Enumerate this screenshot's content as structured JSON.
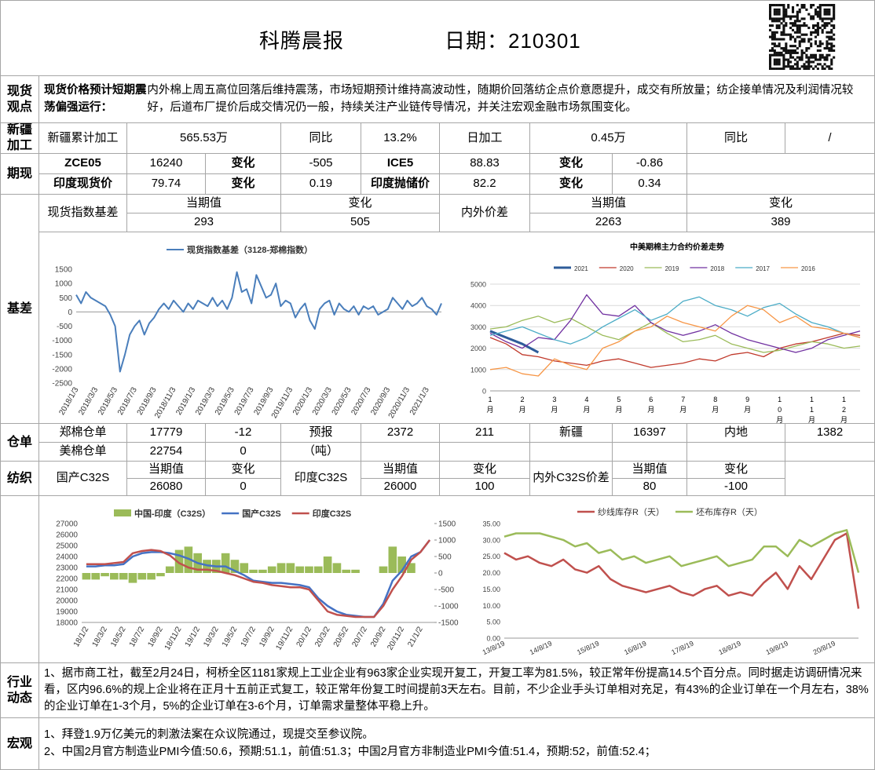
{
  "header": {
    "title": "科腾晨报",
    "date": "日期：210301"
  },
  "spot_view": {
    "label": "现货观点",
    "lead": "现货价格预计短期震荡偏强运行：",
    "text": "内外棉上周五高位回落后维持震荡，市场短期预计维持高波动性，随期价回落纺企点价意愿提升，成交有所放量；纺企接单情况及利润情况较好，后道布厂提价后成交情况仍一般，持续关注产业链传导情况，并关注宏观金融市场氛围变化。"
  },
  "xinjiang": {
    "label": "新疆加工",
    "cells": [
      "新疆累计加工",
      "565.53万",
      "同比",
      "13.2%",
      "日加工",
      "0.45万",
      "同比",
      "/"
    ]
  },
  "futures": {
    "label": "期现",
    "rows": [
      [
        "ZCE05",
        "16240",
        "变化",
        "-505",
        "ICE5",
        "88.83",
        "变化",
        "-0.86"
      ],
      [
        "印度现货价",
        "79.74",
        "变化",
        "0.19",
        "印度抛储价",
        "82.2",
        "变化",
        "0.34"
      ]
    ]
  },
  "basis": {
    "label": "基差",
    "head": [
      "现货指数基差",
      "当期值",
      "变化",
      "内外价差",
      "当期值",
      "变化"
    ],
    "values": [
      "293",
      "505",
      "2263",
      "389"
    ]
  },
  "warehouse": {
    "label": "仓单",
    "rows": [
      [
        "郑棉仓单",
        "17779",
        "-12",
        "预报",
        "2372",
        "211",
        "新疆",
        "16397",
        "内地",
        "1382"
      ],
      [
        "美棉仓单",
        "22754",
        "0",
        "（吨）"
      ]
    ]
  },
  "textile": {
    "label": "纺织",
    "head": [
      "国产C32S",
      "当期值",
      "变化",
      "印度C32S",
      "当期值",
      "变化",
      "内外C32S价差",
      "当期值",
      "变化"
    ],
    "values": [
      "26080",
      "0",
      "26000",
      "100",
      "80",
      "-100"
    ]
  },
  "industry": {
    "label": "行业动态",
    "text": "1、据市商工社，截至2月24日，柯桥全区1181家规上工业企业有963家企业实现开复工，开复工率为81.5%，较正常年份提高14.5个百分点。同时据走访调研情况来看，区内96.6%的规上企业将在正月十五前正式复工，较正常年份复工时间提前3天左右。目前，不少企业手头订单相对充足，有43%的企业订单在一个月左右，38%的企业订单在1-3个月，5%的企业订单在3-6个月，订单需求量整体平稳上升。"
  },
  "macro": {
    "label": "宏观",
    "items": [
      "1、拜登1.9万亿美元的刺激法案在众议院通过，现提交至参议院。",
      "2、中国2月官方制造业PMI今值:50.6，预期:51.1，前值:51.3；中国2月官方非制造业PMI今值:51.4，预期:52，前值:52.4；"
    ]
  },
  "chart_data": [
    {
      "type": "line",
      "categories": [
        "2018/1/3",
        null,
        null,
        null,
        "2018/3/3",
        null,
        null,
        null,
        "2018/5/3",
        null,
        null,
        null,
        "2018/7/3",
        null,
        null,
        null,
        "2018/9/3",
        null,
        null,
        null,
        "2018/11/3",
        null,
        null,
        null,
        "2019/1/3",
        null,
        null,
        null,
        "2019/3/3",
        null,
        null,
        null,
        "2019/5/3",
        null,
        null,
        null,
        "2019/7/3",
        null,
        null,
        null,
        "2019/9/3",
        null,
        null,
        null,
        "2019/11/3",
        null,
        null,
        null,
        "2020/1/3",
        null,
        null,
        null,
        "2020/3/3",
        null,
        null,
        null,
        "2020/5/3",
        null,
        null,
        null,
        "2020/7/3",
        null,
        null,
        null,
        "2020/9/3",
        null,
        null,
        null,
        "2020/11/3",
        null,
        null,
        null,
        "2021/1/3",
        null,
        null,
        null
      ],
      "series": [
        {
          "name": "现货指数基差（3128-郑棉指数）",
          "color": "#4a7ebb",
          "values": [
            600,
            300,
            700,
            500,
            400,
            300,
            200,
            -100,
            -500,
            -2100,
            -1500,
            -800,
            -500,
            -300,
            -800,
            -400,
            -200,
            100,
            300,
            100,
            400,
            200,
            0,
            300,
            100,
            400,
            300,
            200,
            500,
            200,
            400,
            100,
            500,
            1400,
            700,
            800,
            300,
            1300,
            900,
            500,
            600,
            1000,
            200,
            400,
            300,
            -200,
            100,
            300,
            -300,
            -600,
            100,
            300,
            400,
            -100,
            300,
            100,
            0,
            200,
            -100,
            200,
            100,
            200,
            -100,
            0,
            100,
            500,
            300,
            100,
            400,
            200,
            300,
            500,
            200,
            100,
            -100,
            300
          ]
        }
      ],
      "ylim": [
        -2500,
        1500
      ],
      "yticks": [
        -2500,
        -2000,
        -1500,
        -1000,
        -500,
        0,
        500,
        1000,
        1500
      ],
      "grid": false
    },
    {
      "type": "line",
      "title": "中美期棉主力合约价差走势",
      "categories": [
        "1月",
        null,
        "2月",
        null,
        "3月",
        null,
        "4月",
        null,
        "5月",
        null,
        "6月",
        null,
        "7月",
        null,
        "8月",
        null,
        "9月",
        null,
        "10月",
        null,
        "11月",
        null,
        "12月",
        null
      ],
      "series": [
        {
          "name": "2021",
          "color": "#2e5c9a",
          "values": [
            2800,
            2500,
            2200,
            1800,
            null,
            null,
            null,
            null,
            null,
            null,
            null,
            null,
            null,
            null,
            null,
            null,
            null,
            null,
            null,
            null,
            null,
            null,
            null,
            null
          ]
        },
        {
          "name": "2020",
          "color": "#c0392b",
          "values": [
            2500,
            2200,
            1700,
            1600,
            1400,
            1300,
            1200,
            1400,
            1500,
            1300,
            1100,
            1200,
            1300,
            1500,
            1400,
            1700,
            1800,
            1600,
            2000,
            2200,
            2300,
            2500,
            2700,
            2600
          ]
        },
        {
          "name": "2019",
          "color": "#9bbb59",
          "values": [
            2900,
            3000,
            3300,
            3500,
            3200,
            3400,
            3000,
            2600,
            2400,
            2800,
            3200,
            2700,
            2300,
            2400,
            2600,
            2200,
            2000,
            1800,
            1900,
            2100,
            2300,
            2200,
            2000,
            2100
          ]
        },
        {
          "name": "2018",
          "color": "#7030a0",
          "values": [
            2700,
            2300,
            2000,
            2500,
            2400,
            3300,
            4500,
            3600,
            3500,
            4000,
            3200,
            2800,
            2600,
            2800,
            3100,
            2700,
            2400,
            2200,
            2000,
            1800,
            2000,
            2400,
            2600,
            2800
          ]
        },
        {
          "name": "2017",
          "color": "#4bacc6",
          "values": [
            2600,
            2800,
            3000,
            2700,
            2400,
            2200,
            2500,
            3000,
            3400,
            3800,
            3300,
            3600,
            4200,
            4400,
            4000,
            3800,
            3500,
            3900,
            4100,
            3600,
            3200,
            3000,
            2700,
            2500
          ]
        },
        {
          "name": "2016",
          "color": "#f79646",
          "values": [
            1000,
            1100,
            800,
            700,
            1500,
            1200,
            1000,
            2000,
            2300,
            2800,
            3000,
            3500,
            3200,
            3000,
            2800,
            3500,
            4000,
            3800,
            3200,
            3500,
            3000,
            2900,
            2700,
            2500
          ]
        }
      ],
      "ylim": [
        0,
        5000
      ],
      "yticks": [
        0,
        1000,
        2000,
        3000,
        4000,
        5000
      ],
      "grid": true
    },
    {
      "type": "combo",
      "categories": [
        "18/1/2",
        null,
        "18/3/2",
        null,
        "18/5/2",
        null,
        "18/7/2",
        null,
        "18/9/2",
        null,
        "18/11/2",
        null,
        "19/1/2",
        null,
        "19/3/2",
        null,
        "19/5/2",
        null,
        "19/7/2",
        null,
        "19/9/2",
        null,
        "19/11/2",
        null,
        "20/1/2",
        null,
        "20/3/2",
        null,
        "20/5/2",
        null,
        "20/7/2",
        null,
        "20/9/2",
        null,
        "20/11/2",
        null,
        "21/1/2",
        null
      ],
      "series": [
        {
          "name": "中国-印度（C32S）",
          "type": "bar",
          "axis": "y2",
          "color": "#9bbb59",
          "values": [
            -200,
            -200,
            -100,
            -200,
            -200,
            -300,
            -200,
            -200,
            -100,
            200,
            700,
            800,
            600,
            400,
            400,
            600,
            400,
            300,
            100,
            100,
            200,
            300,
            300,
            200,
            200,
            200,
            500,
            300,
            100,
            100,
            0,
            0,
            200,
            800,
            500,
            300,
            0,
            0
          ]
        },
        {
          "name": "国产C32S",
          "type": "line",
          "color": "#4472c4",
          "values": [
            23100,
            23100,
            23200,
            23200,
            23300,
            24000,
            24300,
            24400,
            24400,
            24300,
            24100,
            23800,
            23400,
            23200,
            23100,
            23100,
            22700,
            22300,
            21800,
            21700,
            21600,
            21600,
            21500,
            21400,
            21200,
            20200,
            19500,
            19000,
            18700,
            18600,
            18500,
            18500,
            19700,
            21800,
            22700,
            24000,
            24400,
            25500
          ]
        },
        {
          "name": "印度C32S",
          "type": "line",
          "color": "#c0504d",
          "values": [
            23300,
            23300,
            23300,
            23400,
            23500,
            24300,
            24500,
            24600,
            24500,
            24100,
            23400,
            23000,
            22800,
            22800,
            22700,
            22500,
            22300,
            22000,
            21700,
            21600,
            21400,
            21300,
            21200,
            21200,
            21000,
            20000,
            19000,
            18700,
            18600,
            18500,
            18500,
            18500,
            19500,
            21000,
            22200,
            23700,
            24400,
            25500
          ]
        }
      ],
      "ylim": [
        18000,
        27000
      ],
      "yticks": [
        18000,
        19000,
        20000,
        21000,
        22000,
        23000,
        24000,
        25000,
        26000,
        27000
      ],
      "y2lim": [
        -1500,
        1500
      ],
      "y2ticks": [
        -1500,
        -1000,
        -500,
        0,
        500,
        1000,
        1500
      ],
      "grid": false
    },
    {
      "type": "line",
      "categories": [
        "13/8/19",
        null,
        null,
        null,
        "14/8/19",
        null,
        null,
        null,
        "15/8/19",
        null,
        null,
        null,
        "16/8/19",
        null,
        null,
        null,
        "17/8/19",
        null,
        null,
        null,
        "18/8/19",
        null,
        null,
        null,
        "19/8/19",
        null,
        null,
        null,
        "20/8/19",
        null,
        null
      ],
      "series": [
        {
          "name": "纱线库存R（天）",
          "color": "#c0504d",
          "values": [
            26,
            24,
            25,
            23,
            22,
            24,
            21,
            20,
            22,
            18,
            16,
            15,
            14,
            15,
            16,
            14,
            13,
            15,
            16,
            13,
            14,
            13,
            17,
            20,
            15,
            22,
            18,
            24,
            30,
            32,
            9
          ]
        },
        {
          "name": "坯布库存R（天）",
          "color": "#9bbb59",
          "values": [
            31,
            32,
            32,
            32,
            31,
            30,
            28,
            29,
            26,
            27,
            24,
            25,
            23,
            24,
            25,
            22,
            23,
            24,
            25,
            22,
            23,
            24,
            28,
            28,
            25,
            30,
            28,
            30,
            32,
            33,
            20
          ]
        }
      ],
      "ylim": [
        0,
        35
      ],
      "yticks": [
        {
          "value": 0,
          "label": "0.00"
        },
        {
          "value": 5,
          "label": "5.00"
        },
        {
          "value": 10,
          "label": "10.00"
        },
        {
          "value": 15,
          "label": "15.00"
        },
        {
          "value": 20,
          "label": "20.00"
        },
        {
          "value": 25,
          "label": "25.00"
        },
        {
          "value": 30,
          "label": "30.00"
        },
        {
          "value": 35,
          "label": "35.00"
        }
      ],
      "grid": false
    }
  ]
}
